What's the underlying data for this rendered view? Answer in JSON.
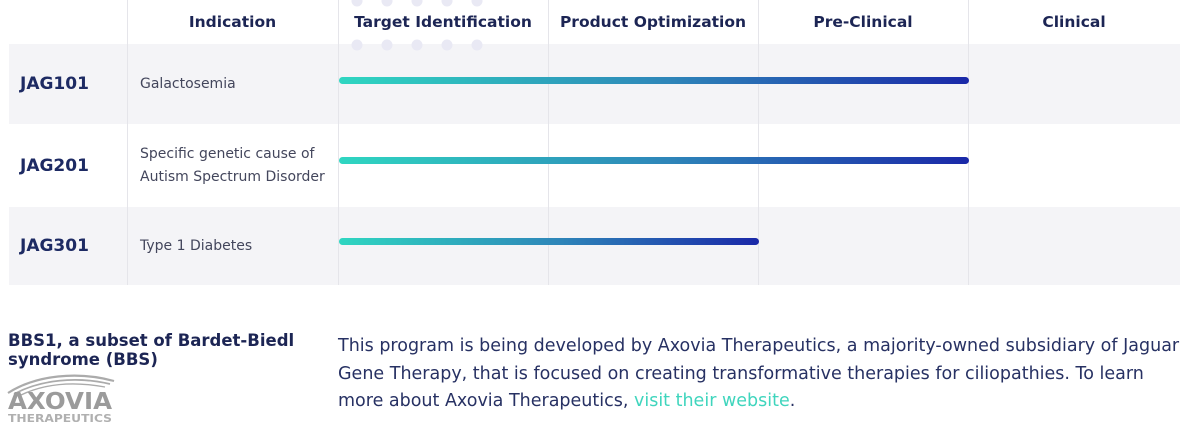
{
  "colors": {
    "navy": "#1c2554",
    "jag_label": "#1d2a63",
    "indication_text": "#43465c",
    "paragraph": "#273163",
    "row_alt_bg": "#f4f4f7",
    "separator": "#e5e5ea",
    "bar_teal": "#2fd6c1",
    "bar_mid": "#2e86b9",
    "bar_blue": "#1a28a8",
    "link_teal": "#3fd5bd",
    "logo_gray": "#9b9b9b",
    "logo_light_gray": "#b0b0b0",
    "dots": "#e9e9f4"
  },
  "pipeline": {
    "columns": [
      "Indication",
      "Target Identification",
      "Product Optimization",
      "Pre-Clinical",
      "Clinical"
    ],
    "rows": [
      {
        "program": "JAG101",
        "indication": "Galactosemia",
        "bar_span_columns": 3
      },
      {
        "program": "JAG201",
        "indication": "Specific genetic cause of Autism Spectrum Disorder",
        "bar_span_columns": 3
      },
      {
        "program": "JAG301",
        "indication": "Type 1 Diabetes",
        "bar_span_columns": 2
      }
    ]
  },
  "footer": {
    "bbs_heading": "BBS1, a subset of Bardet-Biedl syndrome (BBS)",
    "logo_name": "AXOVIA",
    "logo_sub": "THERAPEUTICS",
    "paragraph_before_link": "This program is being developed by Axovia Therapeutics, a majority-owned subsidiary of Jaguar Gene Therapy, that is focused on creating transformative therapies for ciliopathies. To learn more about Axovia Therapeutics, ",
    "link_text": "visit their website",
    "paragraph_after_link": "."
  },
  "chart_data": {
    "type": "table",
    "title": "",
    "columns": [
      "Indication",
      "Target Identification",
      "Product Optimization",
      "Pre-Clinical",
      "Clinical"
    ],
    "stage_columns": [
      "Target Identification",
      "Product Optimization",
      "Pre-Clinical",
      "Clinical"
    ],
    "rows": [
      {
        "program": "JAG101",
        "indication": "Galactosemia",
        "progress_start_stage": "Target Identification",
        "progress_end_stage": "Pre-Clinical",
        "stages_spanned": 3,
        "total_stages": 4
      },
      {
        "program": "JAG201",
        "indication": "Specific genetic cause of Autism Spectrum Disorder",
        "progress_start_stage": "Target Identification",
        "progress_end_stage": "Pre-Clinical",
        "stages_spanned": 3,
        "total_stages": 4
      },
      {
        "program": "JAG301",
        "indication": "Type 1 Diabetes",
        "progress_start_stage": "Target Identification",
        "progress_end_stage": "Product Optimization",
        "stages_spanned": 2,
        "total_stages": 4
      }
    ],
    "legend": "off",
    "bar_style": "gradient teal-to-blue progress lines"
  }
}
